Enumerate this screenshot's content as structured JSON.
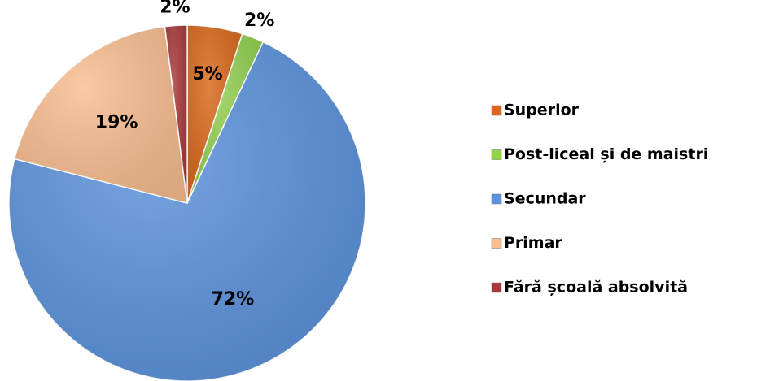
{
  "chart_data": {
    "type": "pie",
    "categories": [
      "Superior",
      "Post-liceal și de maistri",
      "Secundar",
      "Primar",
      "Fără școală absolvită"
    ],
    "values": [
      5,
      2,
      72,
      19,
      2
    ],
    "value_labels": [
      "5%",
      "2%",
      "72%",
      "19%",
      "2%"
    ],
    "colors": [
      "#d9681a",
      "#92d050",
      "#5b93dc",
      "#f9be90",
      "#a8383a"
    ],
    "legend": "right"
  }
}
